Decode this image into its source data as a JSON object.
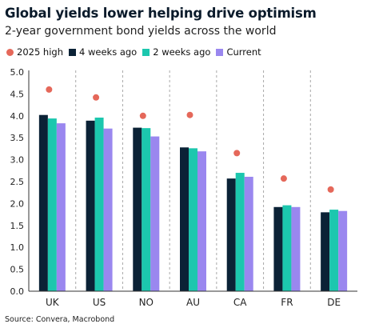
{
  "header": {
    "title": "Global yields lower helping drive optimism",
    "subtitle": "2-year government bond yields across the world"
  },
  "footer": {
    "source": "Source: Convera, Macrobond"
  },
  "colors": {
    "high": "#e5685a",
    "four_weeks": "#0b2236",
    "two_weeks": "#1cc7ae",
    "current": "#9a87ef",
    "grid": "#a8a8a8",
    "axis": "#333333"
  },
  "chart_data": {
    "type": "bar",
    "categories": [
      "UK",
      "US",
      "NO",
      "AU",
      "CA",
      "FR",
      "DE"
    ],
    "series": [
      {
        "name": "2025 high",
        "marker": "dot",
        "values": [
          4.6,
          4.42,
          4.0,
          4.02,
          3.15,
          2.57,
          2.32
        ]
      },
      {
        "name": "4 weeks ago",
        "marker": "bar",
        "values": [
          4.02,
          3.89,
          3.73,
          3.28,
          2.57,
          1.92,
          1.8
        ]
      },
      {
        "name": "2 weeks ago",
        "marker": "bar",
        "values": [
          3.94,
          3.96,
          3.72,
          3.26,
          2.7,
          1.96,
          1.86
        ]
      },
      {
        "name": "Current",
        "marker": "bar",
        "values": [
          3.83,
          3.71,
          3.53,
          3.19,
          2.61,
          1.92,
          1.83
        ]
      }
    ],
    "ylim": [
      0,
      5
    ],
    "yticks": [
      "0.0",
      "0.5",
      "1.0",
      "1.5",
      "2.0",
      "2.5",
      "3.0",
      "3.5",
      "4.0",
      "4.5",
      "5.0"
    ],
    "grid": "vertical dashed separators between categories",
    "legend_position": "top-left"
  }
}
